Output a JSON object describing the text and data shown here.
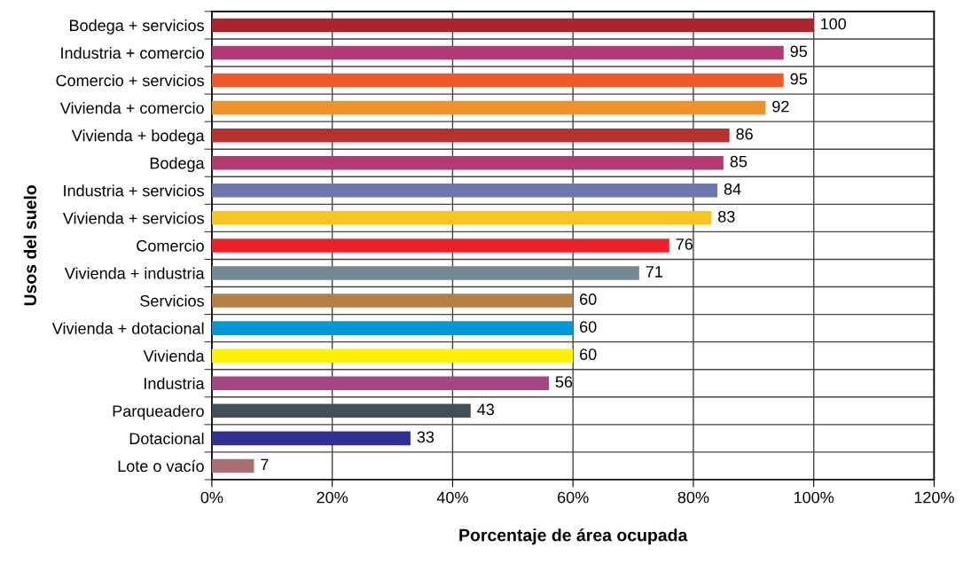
{
  "chart_data": {
    "type": "bar",
    "orientation": "horizontal",
    "xlabel": "Porcentaje de área ocupada",
    "ylabel": "Usos del suelo",
    "categories": [
      "Bodega + servicios",
      "Industria + comercio",
      "Comercio + servicios",
      "Vivienda + comercio",
      "Vivienda + bodega",
      "Bodega",
      "Industria + servicios",
      "Vivienda + servicios",
      "Comercio",
      "Vivienda + industria",
      "Servicios",
      "Vivienda + dotacional",
      "Vivienda",
      "Industria",
      "Parqueadero",
      "Dotacional",
      "Lote o vacío"
    ],
    "values": [
      100,
      95,
      95,
      92,
      86,
      85,
      84,
      83,
      76,
      71,
      60,
      60,
      60,
      56,
      43,
      33,
      7
    ],
    "colors": [
      "#a8262c",
      "#b43a74",
      "#ef5a28",
      "#f09129",
      "#b6322f",
      "#b43a74",
      "#6b78b0",
      "#f8c41f",
      "#ec2227",
      "#748996",
      "#b38043",
      "#0396d9",
      "#fff200",
      "#a44683",
      "#434f58",
      "#312f92",
      "#a86f72"
    ],
    "xlim": [
      0,
      120
    ],
    "xticks": [
      {
        "value": 0,
        "label": "0%"
      },
      {
        "value": 20,
        "label": "20%"
      },
      {
        "value": 40,
        "label": "40%"
      },
      {
        "value": 60,
        "label": "60%"
      },
      {
        "value": 80,
        "label": "80%"
      },
      {
        "value": 100,
        "label": "100%"
      },
      {
        "value": 120,
        "label": "120%"
      }
    ],
    "grid": true,
    "data_labels": true
  }
}
